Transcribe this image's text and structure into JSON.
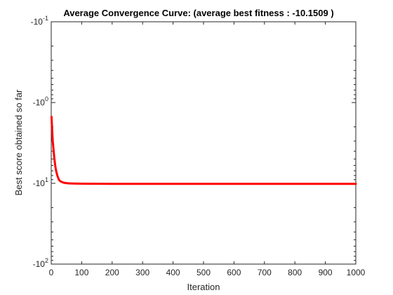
{
  "chart_data": {
    "type": "line",
    "title": "Average Convergence Curve: (average best fitness : -10.1509 )",
    "xlabel": "Iteration",
    "ylabel": "Best score obtained so far",
    "xlim": [
      0,
      1000
    ],
    "ylim": [
      -100,
      -0.1
    ],
    "yscale": "symlog-negative",
    "x_ticks": [
      0,
      100,
      200,
      300,
      400,
      500,
      600,
      700,
      800,
      900,
      1000
    ],
    "y_ticks": [
      {
        "base": "-10",
        "exp": "-1",
        "value": -0.1
      },
      {
        "base": "-10",
        "exp": "0",
        "value": -1
      },
      {
        "base": "-10",
        "exp": "1",
        "value": -10
      },
      {
        "base": "-10",
        "exp": "2",
        "value": -100
      }
    ],
    "grid": false,
    "box": true,
    "series": [
      {
        "color": "#ff0000",
        "x": [
          1,
          3,
          5,
          8,
          10,
          13,
          16,
          20,
          25,
          30,
          40,
          50,
          60,
          80,
          100,
          150,
          200,
          300,
          500,
          700,
          1000
        ],
        "y": [
          -1.5,
          -2.2,
          -3.0,
          -4.0,
          -4.8,
          -6.0,
          -7.0,
          -8.0,
          -9.0,
          -9.45,
          -9.8,
          -9.95,
          -10.02,
          -10.08,
          -10.11,
          -10.13,
          -10.14,
          -10.145,
          -10.148,
          -10.15,
          -10.1509
        ]
      }
    ]
  }
}
